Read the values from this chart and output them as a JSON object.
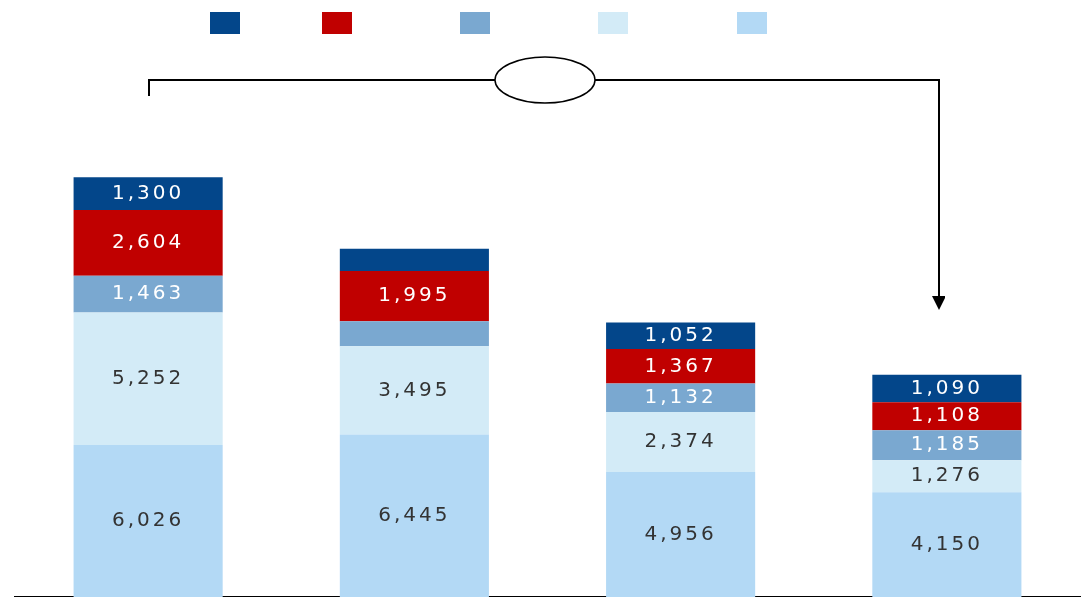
{
  "chart_data": {
    "type": "bar",
    "stacked": true,
    "categories": [
      null,
      null,
      null,
      null
    ],
    "series": [
      {
        "color": "#b3d9f5",
        "values": [
          6026,
          6445,
          4956,
          4150
        ],
        "value_labels": [
          "6,026",
          "6,445",
          "4,956",
          "4,150"
        ]
      },
      {
        "color": "#d3ebf7",
        "values": [
          5252,
          3495,
          2374,
          1276
        ],
        "value_labels": [
          "5,252",
          "3,495",
          "2,374",
          "1,276"
        ]
      },
      {
        "color": "#7aa8d0",
        "values": [
          1463,
          990,
          1132,
          1185
        ],
        "value_labels": [
          "1,463",
          null,
          "1,132",
          "1,185"
        ]
      },
      {
        "color": "#c00000",
        "values": [
          2604,
          1995,
          1367,
          1108
        ],
        "value_labels": [
          "2,604",
          "1,995",
          "1,367",
          "1,108"
        ]
      },
      {
        "color": "#03468a",
        "values": [
          1300,
          880,
          1052,
          1090
        ],
        "value_labels": [
          "1,300",
          null,
          "1,052",
          "1,090"
        ]
      }
    ],
    "legend": false,
    "grid": false
  }
}
